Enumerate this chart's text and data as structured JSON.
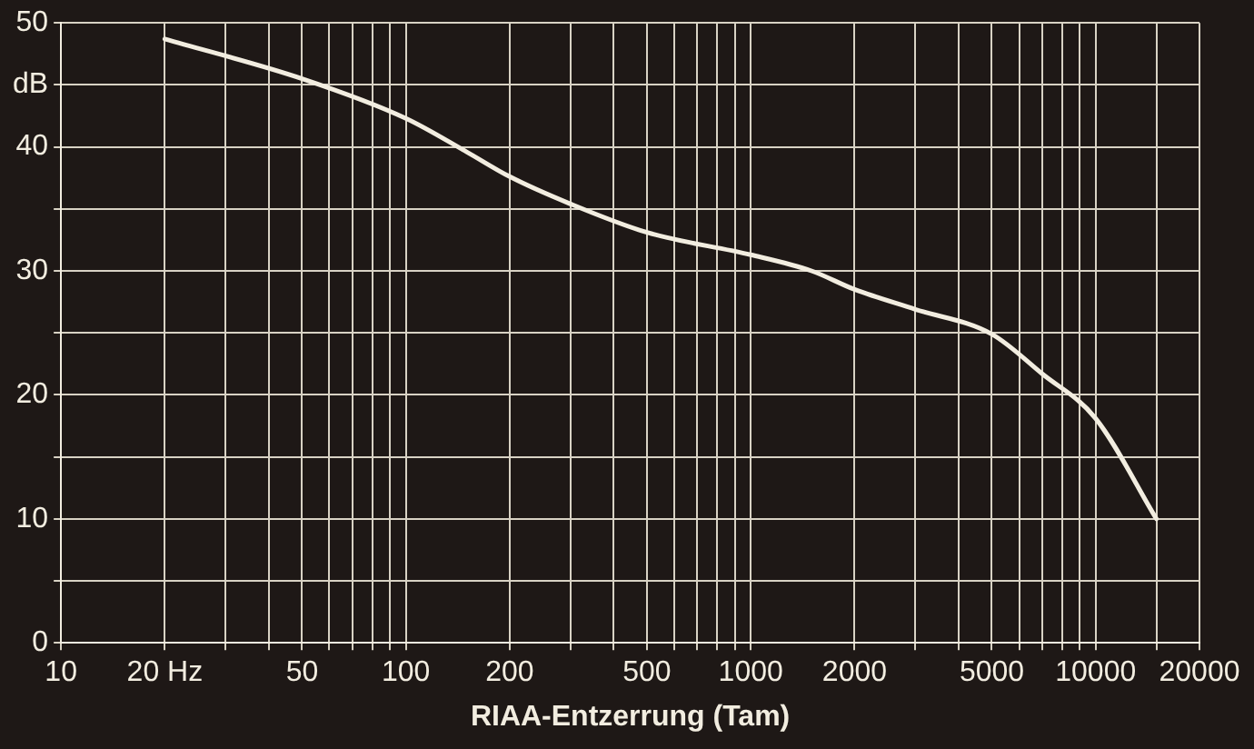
{
  "chart_data": {
    "type": "line",
    "xlabel": "RIAA-Entzerrung (Tam)",
    "log": "x",
    "grid": true,
    "legend": false,
    "marker": "none",
    "line_style": "solid",
    "xlim": [
      10,
      20000
    ],
    "xticks": [
      10,
      {
        "value": 20,
        "label": "20 Hz"
      },
      {
        "value": 30,
        "label": null
      },
      {
        "value": 40,
        "label": null
      },
      50,
      {
        "value": 60,
        "label": null
      },
      {
        "value": 70,
        "label": null
      },
      {
        "value": 80,
        "label": null
      },
      {
        "value": 90,
        "label": null
      },
      100,
      200,
      {
        "value": 300,
        "label": null
      },
      {
        "value": 400,
        "label": null
      },
      500,
      {
        "value": 600,
        "label": null
      },
      {
        "value": 700,
        "label": null
      },
      {
        "value": 800,
        "label": null
      },
      {
        "value": 900,
        "label": null
      },
      1000,
      2000,
      {
        "value": 3000,
        "label": null
      },
      {
        "value": 4000,
        "label": null
      },
      5000,
      {
        "value": 6000,
        "label": null
      },
      {
        "value": 7000,
        "label": null
      },
      {
        "value": 8000,
        "label": null
      },
      {
        "value": 9000,
        "label": null
      },
      10000,
      {
        "value": 15000,
        "label": null
      },
      20000
    ],
    "ylim": [
      0,
      50
    ],
    "yticks": [
      0,
      {
        "value": 5,
        "label": null
      },
      10,
      {
        "value": 15,
        "label": null
      },
      20,
      {
        "value": 25,
        "label": null
      },
      30,
      {
        "value": 35,
        "label": null
      },
      40,
      {
        "value": 45,
        "label": "dB"
      },
      50
    ],
    "series": [
      {
        "color": "#f2ede0",
        "x": [
          20,
          50,
          100,
          150,
          200,
          300,
          500,
          1000,
          1500,
          2000,
          3000,
          5000,
          7000,
          10000,
          15000
        ],
        "values": [
          48.7,
          45.5,
          42.3,
          39.6,
          37.6,
          35.4,
          33.1,
          31.3,
          30.0,
          28.5,
          26.9,
          24.9,
          21.7,
          18.1,
          10
        ]
      }
    ]
  }
}
